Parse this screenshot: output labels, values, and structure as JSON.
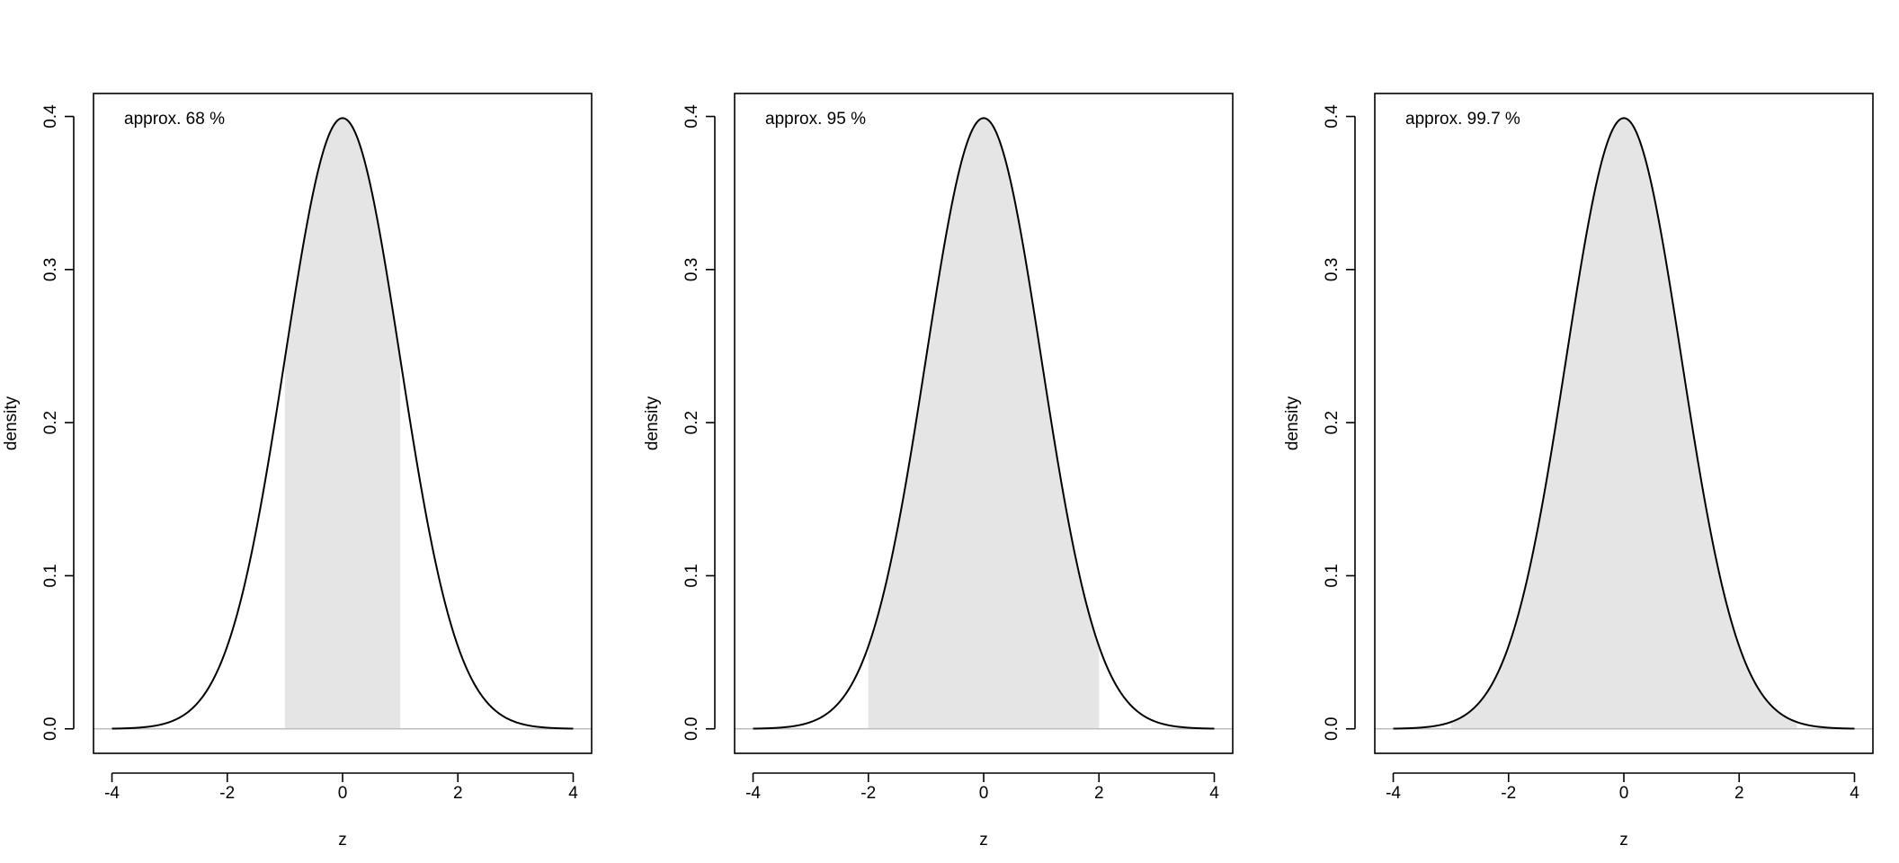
{
  "colors": {
    "shade": "#e5e5e5",
    "curve": "#000000",
    "baseline": "#bebebe",
    "axis": "#000000",
    "background": "#ffffff"
  },
  "chart_data": [
    {
      "type": "area",
      "title": "",
      "xlabel": "z",
      "ylabel": "density",
      "xlim": [
        -4.32,
        4.32
      ],
      "ylim": [
        -0.016,
        0.415
      ],
      "xticks": [
        -4,
        -2,
        0,
        2,
        4
      ],
      "xtick_labels": [
        "-4",
        "-2",
        "0",
        "2",
        "4"
      ],
      "yticks": [
        0.0,
        0.1,
        0.2,
        0.3,
        0.4
      ],
      "ytick_labels": [
        "0.0",
        "0.1",
        "0.2",
        "0.3",
        "0.4"
      ],
      "curve_x_range": [
        -4,
        4
      ],
      "shaded_interval": [
        -1,
        1
      ],
      "annotation": "approx. 68 %",
      "annotation_position": "top-left",
      "grid": false
    },
    {
      "type": "area",
      "title": "",
      "xlabel": "z",
      "ylabel": "density",
      "xlim": [
        -4.32,
        4.32
      ],
      "ylim": [
        -0.016,
        0.415
      ],
      "xticks": [
        -4,
        -2,
        0,
        2,
        4
      ],
      "xtick_labels": [
        "-4",
        "-2",
        "0",
        "2",
        "4"
      ],
      "yticks": [
        0.0,
        0.1,
        0.2,
        0.3,
        0.4
      ],
      "ytick_labels": [
        "0.0",
        "0.1",
        "0.2",
        "0.3",
        "0.4"
      ],
      "curve_x_range": [
        -4,
        4
      ],
      "shaded_interval": [
        -2,
        2
      ],
      "annotation": "approx. 95 %",
      "annotation_position": "top-left",
      "grid": false
    },
    {
      "type": "area",
      "title": "",
      "xlabel": "z",
      "ylabel": "density",
      "xlim": [
        -4.32,
        4.32
      ],
      "ylim": [
        -0.016,
        0.415
      ],
      "xticks": [
        -4,
        -2,
        0,
        2,
        4
      ],
      "xtick_labels": [
        "-4",
        "-2",
        "0",
        "2",
        "4"
      ],
      "yticks": [
        0.0,
        0.1,
        0.2,
        0.3,
        0.4
      ],
      "ytick_labels": [
        "0.0",
        "0.1",
        "0.2",
        "0.3",
        "0.4"
      ],
      "curve_x_range": [
        -4,
        4
      ],
      "shaded_interval": [
        -3,
        3
      ],
      "annotation": "approx. 99.7 %",
      "annotation_position": "top-left",
      "grid": false
    }
  ]
}
